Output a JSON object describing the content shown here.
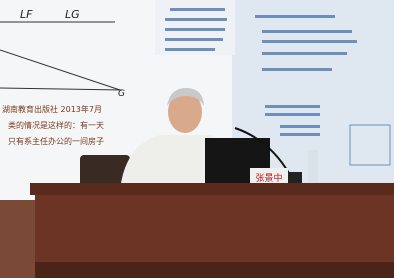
{
  "slide": {
    "label_lf": "LF",
    "label_lg": "LG",
    "label_g": "G",
    "lines": [
      "湖南教育出版社 2013年7月",
      "类的情况是这样的：有一天",
      "只有系主任办公的一间房子"
    ]
  },
  "nameplate": "张景中"
}
